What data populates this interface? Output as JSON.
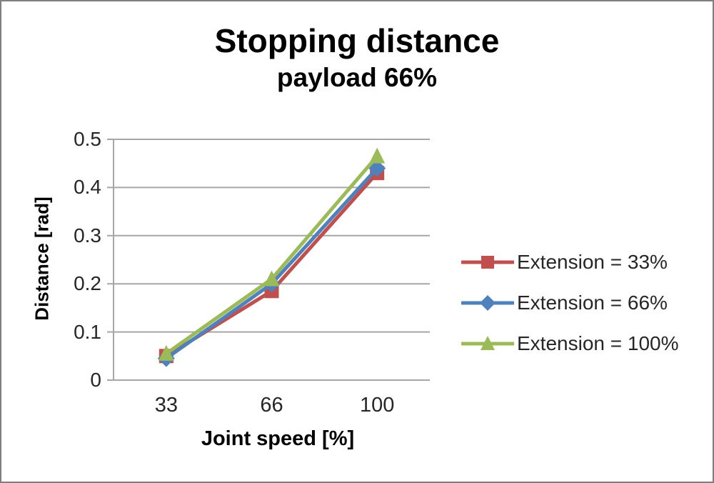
{
  "title": "Stopping distance",
  "subtitle": "payload 66%",
  "chart_data": {
    "type": "line",
    "title": "Stopping distance",
    "subtitle": "payload 66%",
    "xlabel": "Joint speed [%]",
    "ylabel": "Distance [rad]",
    "categories": [
      "33",
      "66",
      "100"
    ],
    "series": [
      {
        "name": "Extension = 33%",
        "color": "#C0504D",
        "marker": "square",
        "values": [
          0.05,
          0.185,
          0.43
        ]
      },
      {
        "name": "Extension = 66%",
        "color": "#4F81BD",
        "marker": "diamond",
        "values": [
          0.045,
          0.2,
          0.44
        ]
      },
      {
        "name": "Extension = 100%",
        "color": "#9BBB59",
        "marker": "triangle",
        "values": [
          0.055,
          0.21,
          0.465
        ]
      }
    ],
    "ylim": [
      0,
      0.5
    ],
    "yticks": [
      "0",
      "0.1",
      "0.2",
      "0.3",
      "0.4",
      "0.5"
    ],
    "grid": true,
    "legend_position": "right",
    "gridline_color": "#A6A6A6",
    "axis_color": "#A6A6A6",
    "text_color": "#262626"
  }
}
